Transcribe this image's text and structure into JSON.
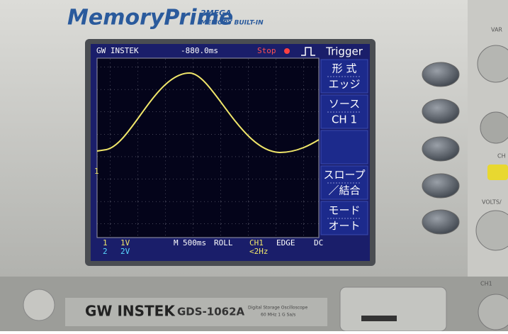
{
  "header": {
    "brand": "MemoryPrime",
    "badge_top": "2MEGA",
    "badge_bottom": "MEMORY BUILT-IN"
  },
  "screen": {
    "logo": "GW INSTEK",
    "time_offset": "-880.0ms",
    "status": "Stop",
    "menu_title": "Trigger",
    "menu": [
      {
        "lines": [
          "形 式",
          "エッジ"
        ]
      },
      {
        "lines": [
          "ソース",
          "CH 1"
        ]
      },
      {
        "lines": [
          "スロープ",
          "／結合"
        ]
      },
      {
        "lines": [
          "モード",
          "オート"
        ]
      }
    ],
    "status_bar": {
      "ch1_marker": "1",
      "ch1_scale": "1V",
      "ch2_marker": "2",
      "ch2_scale": "2V",
      "timebase_marker": "M",
      "timebase": "500ms",
      "mode": "ROLL",
      "source": "CH1",
      "trigger": "EDGE",
      "coupling": "DC",
      "frequency": "<2Hz"
    }
  },
  "side_labels": [
    "VAR",
    "CH",
    "VOLTS/",
    "CH1"
  ],
  "footer": {
    "brand": "GW INSTEK",
    "model": "GDS-1062A",
    "description": "Digital Storage Oscilloscope",
    "spec": "60 MHz  1 G Sa/s"
  }
}
